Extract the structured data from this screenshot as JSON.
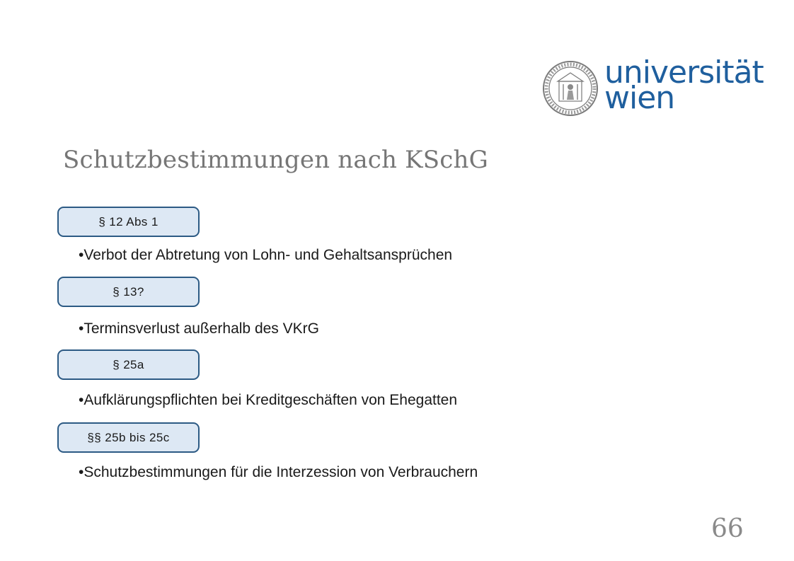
{
  "logo": {
    "line1": "universität",
    "line2": "wien",
    "seal_icon": "university-seal-icon",
    "brand_color": "#1f5f9e"
  },
  "slide": {
    "title": "Schutzbestimmungen nach KSchG",
    "sections": [
      {
        "badge": "§ 12 Abs 1",
        "text": "•Verbot der Abtretung von Lohn- und Gehaltsansprüchen"
      },
      {
        "badge": "§ 13?",
        "text": "•Terminsverlust außerhalb des VKrG"
      },
      {
        "badge": "§ 25a",
        "text": "•Aufklärungspflichten bei Kreditgeschäften von Ehegatten"
      },
      {
        "badge": "§§ 25b bis 25c",
        "text": "•Schutzbestimmungen für die Interzession von Verbrauchern"
      }
    ],
    "page_number": "66"
  },
  "colors": {
    "badge_fill": "#dde8f4",
    "badge_border": "#2c5a84",
    "title": "#767676"
  }
}
